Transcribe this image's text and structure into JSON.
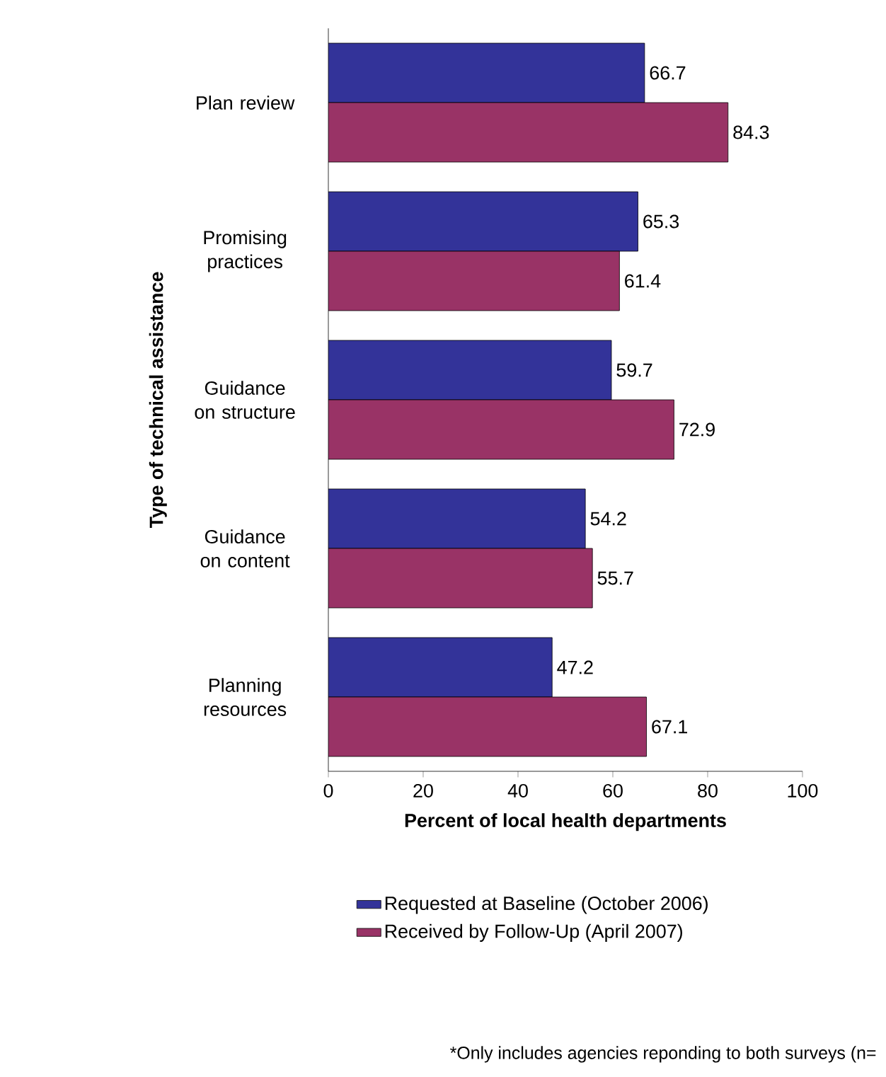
{
  "chart_data": {
    "type": "bar",
    "orientation": "horizontal",
    "xlabel": "Percent of local health departments",
    "ylabel": "Type of technical assistance",
    "categories": [
      "Plan review",
      "Promising practices",
      "Guidance on structure",
      "Guidance on content",
      "Planning resources"
    ],
    "series": [
      {
        "name": "Requested at Baseline (October 2006)",
        "color": "#333399",
        "values": [
          66.7,
          65.3,
          59.7,
          54.2,
          47.2
        ]
      },
      {
        "name": "Received by Follow-Up (April 2007)",
        "color": "#993366",
        "values": [
          84.3,
          61.4,
          72.9,
          55.7,
          67.1
        ]
      }
    ],
    "xlim": [
      0,
      100
    ],
    "xticks": [
      0,
      20,
      40,
      60,
      80,
      100
    ],
    "data_labels": true,
    "legend": "bottom",
    "annotations": [
      "*Only includes agencies reponding to both surveys (n="
    ]
  }
}
